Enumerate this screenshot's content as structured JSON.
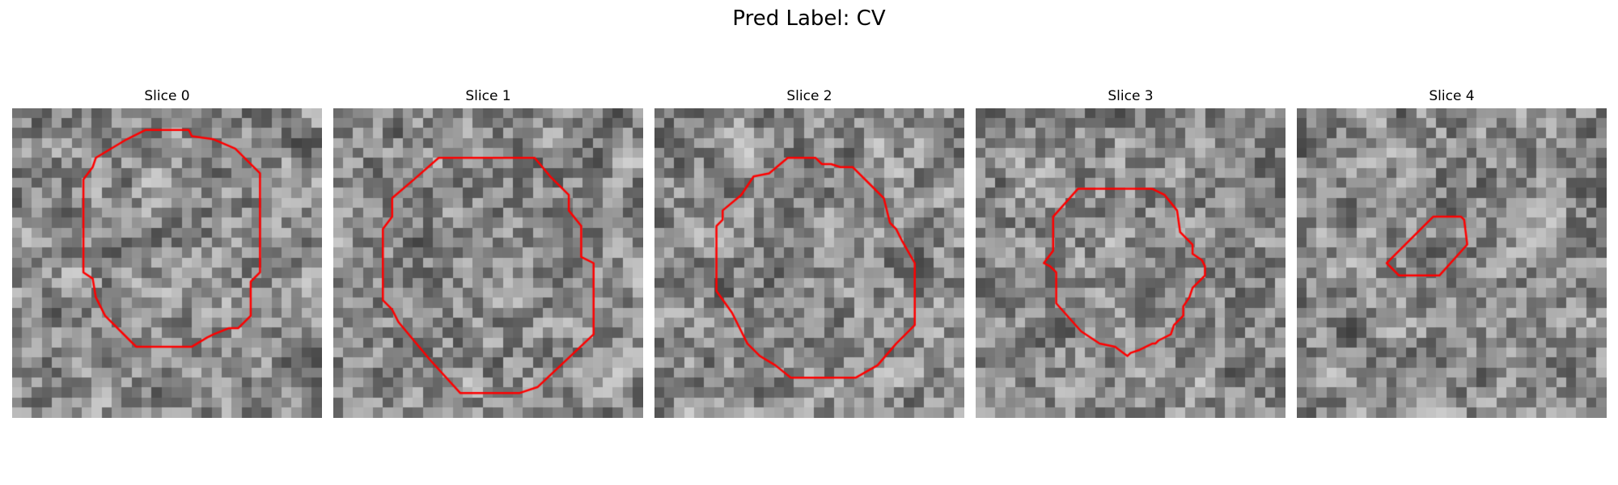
{
  "figure": {
    "title": "Pred Label: CV"
  },
  "contour_color": "#ff0000",
  "panels": [
    {
      "title": "Slice 0",
      "seed": 11,
      "contour": [
        [
          0.43,
          0.07
        ],
        [
          0.57,
          0.07
        ],
        [
          0.58,
          0.09
        ],
        [
          0.65,
          0.1
        ],
        [
          0.72,
          0.13
        ],
        [
          0.8,
          0.21
        ],
        [
          0.8,
          0.53
        ],
        [
          0.77,
          0.56
        ],
        [
          0.77,
          0.67
        ],
        [
          0.73,
          0.71
        ],
        [
          0.7,
          0.71
        ],
        [
          0.65,
          0.73
        ],
        [
          0.63,
          0.74
        ],
        [
          0.58,
          0.77
        ],
        [
          0.4,
          0.77
        ],
        [
          0.38,
          0.75
        ],
        [
          0.3,
          0.67
        ],
        [
          0.27,
          0.61
        ],
        [
          0.26,
          0.55
        ],
        [
          0.23,
          0.53
        ],
        [
          0.23,
          0.23
        ],
        [
          0.26,
          0.19
        ],
        [
          0.27,
          0.16
        ],
        [
          0.37,
          0.1
        ]
      ]
    },
    {
      "title": "Slice 1",
      "seed": 23,
      "contour": [
        [
          0.34,
          0.16
        ],
        [
          0.65,
          0.16
        ],
        [
          0.7,
          0.22
        ],
        [
          0.76,
          0.28
        ],
        [
          0.76,
          0.33
        ],
        [
          0.8,
          0.38
        ],
        [
          0.8,
          0.48
        ],
        [
          0.84,
          0.5
        ],
        [
          0.84,
          0.73
        ],
        [
          0.66,
          0.9
        ],
        [
          0.6,
          0.92
        ],
        [
          0.41,
          0.92
        ],
        [
          0.31,
          0.81
        ],
        [
          0.21,
          0.69
        ],
        [
          0.19,
          0.65
        ],
        [
          0.16,
          0.62
        ],
        [
          0.16,
          0.39
        ],
        [
          0.19,
          0.35
        ],
        [
          0.19,
          0.29
        ],
        [
          0.26,
          0.23
        ]
      ]
    },
    {
      "title": "Slice 2",
      "seed": 37,
      "contour": [
        [
          0.43,
          0.16
        ],
        [
          0.52,
          0.16
        ],
        [
          0.54,
          0.18
        ],
        [
          0.57,
          0.18
        ],
        [
          0.6,
          0.19
        ],
        [
          0.64,
          0.19
        ],
        [
          0.7,
          0.25
        ],
        [
          0.74,
          0.29
        ],
        [
          0.76,
          0.37
        ],
        [
          0.78,
          0.39
        ],
        [
          0.8,
          0.43
        ],
        [
          0.84,
          0.5
        ],
        [
          0.84,
          0.7
        ],
        [
          0.78,
          0.76
        ],
        [
          0.72,
          0.83
        ],
        [
          0.65,
          0.87
        ],
        [
          0.44,
          0.87
        ],
        [
          0.39,
          0.83
        ],
        [
          0.34,
          0.8
        ],
        [
          0.3,
          0.76
        ],
        [
          0.28,
          0.72
        ],
        [
          0.25,
          0.66
        ],
        [
          0.2,
          0.59
        ],
        [
          0.2,
          0.38
        ],
        [
          0.22,
          0.36
        ],
        [
          0.22,
          0.33
        ],
        [
          0.28,
          0.28
        ],
        [
          0.32,
          0.22
        ],
        [
          0.37,
          0.21
        ]
      ]
    },
    {
      "title": "Slice 3",
      "seed": 53,
      "contour": [
        [
          0.33,
          0.26
        ],
        [
          0.4,
          0.26
        ],
        [
          0.45,
          0.26
        ],
        [
          0.57,
          0.26
        ],
        [
          0.61,
          0.28
        ],
        [
          0.65,
          0.33
        ],
        [
          0.66,
          0.4
        ],
        [
          0.7,
          0.44
        ],
        [
          0.7,
          0.47
        ],
        [
          0.73,
          0.49
        ],
        [
          0.74,
          0.51
        ],
        [
          0.74,
          0.54
        ],
        [
          0.7,
          0.58
        ],
        [
          0.69,
          0.61
        ],
        [
          0.67,
          0.64
        ],
        [
          0.67,
          0.67
        ],
        [
          0.64,
          0.7
        ],
        [
          0.63,
          0.73
        ],
        [
          0.59,
          0.75
        ],
        [
          0.58,
          0.76
        ],
        [
          0.57,
          0.76
        ],
        [
          0.53,
          0.78
        ],
        [
          0.5,
          0.79
        ],
        [
          0.49,
          0.8
        ],
        [
          0.45,
          0.77
        ],
        [
          0.4,
          0.76
        ],
        [
          0.34,
          0.72
        ],
        [
          0.26,
          0.63
        ],
        [
          0.26,
          0.53
        ],
        [
          0.24,
          0.51
        ],
        [
          0.22,
          0.5
        ],
        [
          0.25,
          0.46
        ],
        [
          0.25,
          0.35
        ]
      ]
    },
    {
      "title": "Slice 4",
      "seed": 71,
      "contour": [
        [
          0.44,
          0.35
        ],
        [
          0.53,
          0.35
        ],
        [
          0.54,
          0.36
        ],
        [
          0.55,
          0.44
        ],
        [
          0.46,
          0.54
        ],
        [
          0.33,
          0.54
        ],
        [
          0.29,
          0.5
        ],
        [
          0.3,
          0.49
        ]
      ]
    }
  ]
}
